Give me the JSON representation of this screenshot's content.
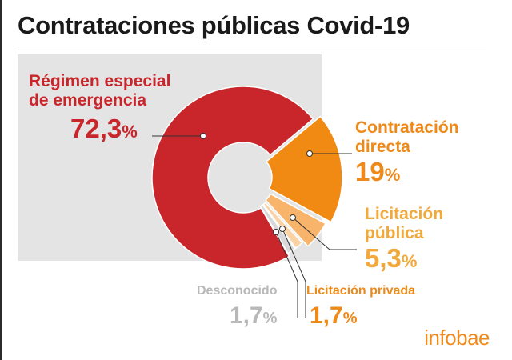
{
  "title": "Contrataciones públicas Covid-19",
  "logo": "infobae",
  "chart_data": {
    "type": "pie",
    "style": "donut-with-exploded-slices",
    "categories": [
      "Régimen especial de emergencia",
      "Contratación directa",
      "Licitación pública",
      "Licitación privada",
      "Desconocido"
    ],
    "values": [
      72.3,
      19,
      5.3,
      1.7,
      1.7
    ],
    "value_labels": [
      "72,3",
      "19",
      "5,3",
      "1,7",
      "1,7"
    ],
    "unit": "%",
    "colors": [
      "#c9262c",
      "#f08a12",
      "#f7b46a",
      "#fad3a4",
      "#d9d9d9"
    ]
  },
  "labels": {
    "regimen_line1": "Régimen especial",
    "regimen_line2": "de emergencia",
    "directa_line1": "Contratación",
    "directa_line2": "directa",
    "publica_line1": "Licitación",
    "publica_line2": "pública",
    "privada": "Licitación privada",
    "desconocido": "Desconocido"
  }
}
